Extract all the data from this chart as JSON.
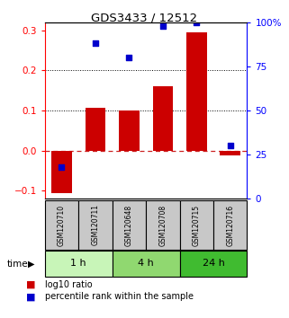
{
  "title": "GDS3433 / 12512",
  "samples": [
    "GSM120710",
    "GSM120711",
    "GSM120648",
    "GSM120708",
    "GSM120715",
    "GSM120716"
  ],
  "log10_ratio": [
    -0.105,
    0.107,
    0.101,
    0.16,
    0.295,
    -0.012
  ],
  "percentile_rank_pct": [
    18,
    88,
    80,
    98,
    100,
    30
  ],
  "time_groups": [
    {
      "label": "1 h",
      "indices": [
        0,
        1
      ],
      "color": "#c8f5b8"
    },
    {
      "label": "4 h",
      "indices": [
        2,
        3
      ],
      "color": "#90d870"
    },
    {
      "label": "24 h",
      "indices": [
        4,
        5
      ],
      "color": "#40bb30"
    }
  ],
  "ylim_left": [
    -0.12,
    0.32
  ],
  "ylim_right": [
    0,
    100
  ],
  "bar_color": "#cc0000",
  "dot_color": "#0000cc",
  "zero_line_color": "#cc2222",
  "grid_color": "#000000",
  "label_log10": "log10 ratio",
  "label_percentile": "percentile rank within the sample",
  "bar_width": 0.6,
  "sample_box_color": "#c8c8c8",
  "sample_box_border": "#000000",
  "bg_color": "#ffffff"
}
